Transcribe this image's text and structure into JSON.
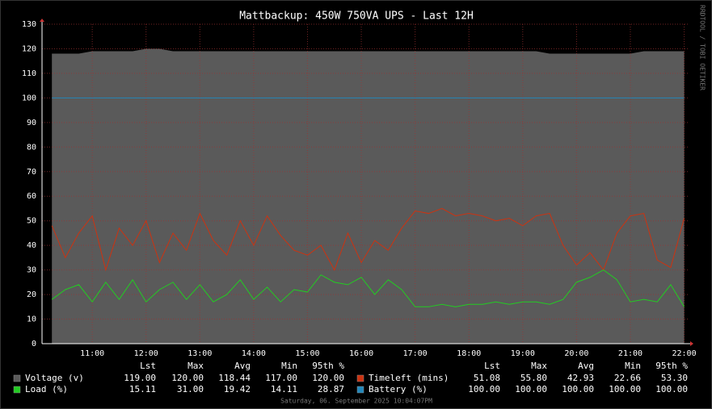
{
  "chart_data": {
    "type": "rrd",
    "title": "Mattbackup: 450W 750VA UPS - Last 12H",
    "side_text": "RRDTOOL / TOBI OETIKER",
    "footer": "Saturday, 06. September 2025 10:04:07PM",
    "stat_headers": [
      "Lst",
      "Max",
      "Avg",
      "Min",
      "95th %"
    ],
    "x": [
      "10:15",
      "10:30",
      "10:45",
      "11:00",
      "11:15",
      "11:30",
      "11:45",
      "12:00",
      "12:15",
      "12:30",
      "12:45",
      "13:00",
      "13:15",
      "13:30",
      "13:45",
      "14:00",
      "14:15",
      "14:30",
      "14:45",
      "15:00",
      "15:15",
      "15:30",
      "15:45",
      "16:00",
      "16:15",
      "16:30",
      "16:45",
      "17:00",
      "17:15",
      "17:30",
      "17:45",
      "18:00",
      "18:15",
      "18:30",
      "18:45",
      "19:00",
      "19:15",
      "19:30",
      "19:45",
      "20:00",
      "20:15",
      "20:30",
      "20:45",
      "21:00",
      "21:15",
      "21:30",
      "21:45",
      "22:00"
    ],
    "xlim": [
      "10:04",
      "22:04"
    ],
    "xticks": [
      "11:00",
      "12:00",
      "13:00",
      "14:00",
      "15:00",
      "16:00",
      "17:00",
      "18:00",
      "19:00",
      "20:00",
      "21:00",
      "22:00"
    ],
    "ylim": [
      0,
      130
    ],
    "yticks": [
      0,
      10,
      20,
      30,
      40,
      50,
      60,
      70,
      80,
      90,
      100,
      110,
      120,
      130
    ],
    "grid": true,
    "series": [
      {
        "name": "Voltage (v)",
        "color": "#5a5a5a",
        "style": "area",
        "values": [
          118,
          118,
          118,
          119,
          119,
          119,
          119,
          120,
          120,
          119,
          119,
          119,
          119,
          119,
          119,
          119,
          119,
          119,
          119,
          119,
          119,
          119,
          119,
          119,
          119,
          119,
          119,
          119,
          119,
          119,
          119,
          119,
          119,
          119,
          119,
          119,
          119,
          118,
          118,
          118,
          118,
          118,
          118,
          118,
          119,
          119,
          119,
          119
        ],
        "stats": [
          "119.00",
          "120.00",
          "118.44",
          "117.00",
          "120.00"
        ]
      },
      {
        "name": "Timeleft (mins)",
        "color": "#cc3311",
        "style": "line",
        "values": [
          48,
          35,
          45,
          52,
          30,
          47,
          40,
          50,
          33,
          45,
          38,
          53,
          42,
          36,
          50,
          40,
          52,
          44,
          38,
          36,
          40,
          30,
          45,
          33,
          42,
          38,
          47,
          54,
          53,
          55,
          52,
          53,
          52,
          50,
          51,
          48,
          52,
          53,
          40,
          32,
          37,
          30,
          45,
          52,
          53,
          34,
          31,
          51
        ],
        "stats": [
          "51.08",
          "55.80",
          "42.93",
          "22.66",
          "53.30"
        ]
      },
      {
        "name": "Load (%)",
        "color": "#22cc22",
        "style": "line",
        "values": [
          18,
          22,
          24,
          17,
          25,
          18,
          26,
          17,
          22,
          25,
          18,
          24,
          17,
          20,
          26,
          18,
          23,
          17,
          22,
          21,
          28,
          25,
          24,
          27,
          20,
          26,
          22,
          15,
          15,
          16,
          15,
          16,
          16,
          17,
          16,
          17,
          17,
          16,
          18,
          25,
          27,
          30,
          26,
          17,
          18,
          17,
          24,
          15
        ],
        "stats": [
          "15.11",
          "31.00",
          "19.42",
          "14.11",
          "28.87"
        ]
      },
      {
        "name": "Battery (%)",
        "color": "#2288bb",
        "style": "line",
        "values": [
          100,
          100,
          100,
          100,
          100,
          100,
          100,
          100,
          100,
          100,
          100,
          100,
          100,
          100,
          100,
          100,
          100,
          100,
          100,
          100,
          100,
          100,
          100,
          100,
          100,
          100,
          100,
          100,
          100,
          100,
          100,
          100,
          100,
          100,
          100,
          100,
          100,
          100,
          100,
          100,
          100,
          100,
          100,
          100,
          100,
          100,
          100,
          100
        ],
        "stats": [
          "100.00",
          "100.00",
          "100.00",
          "100.00",
          "100.00"
        ]
      }
    ]
  }
}
